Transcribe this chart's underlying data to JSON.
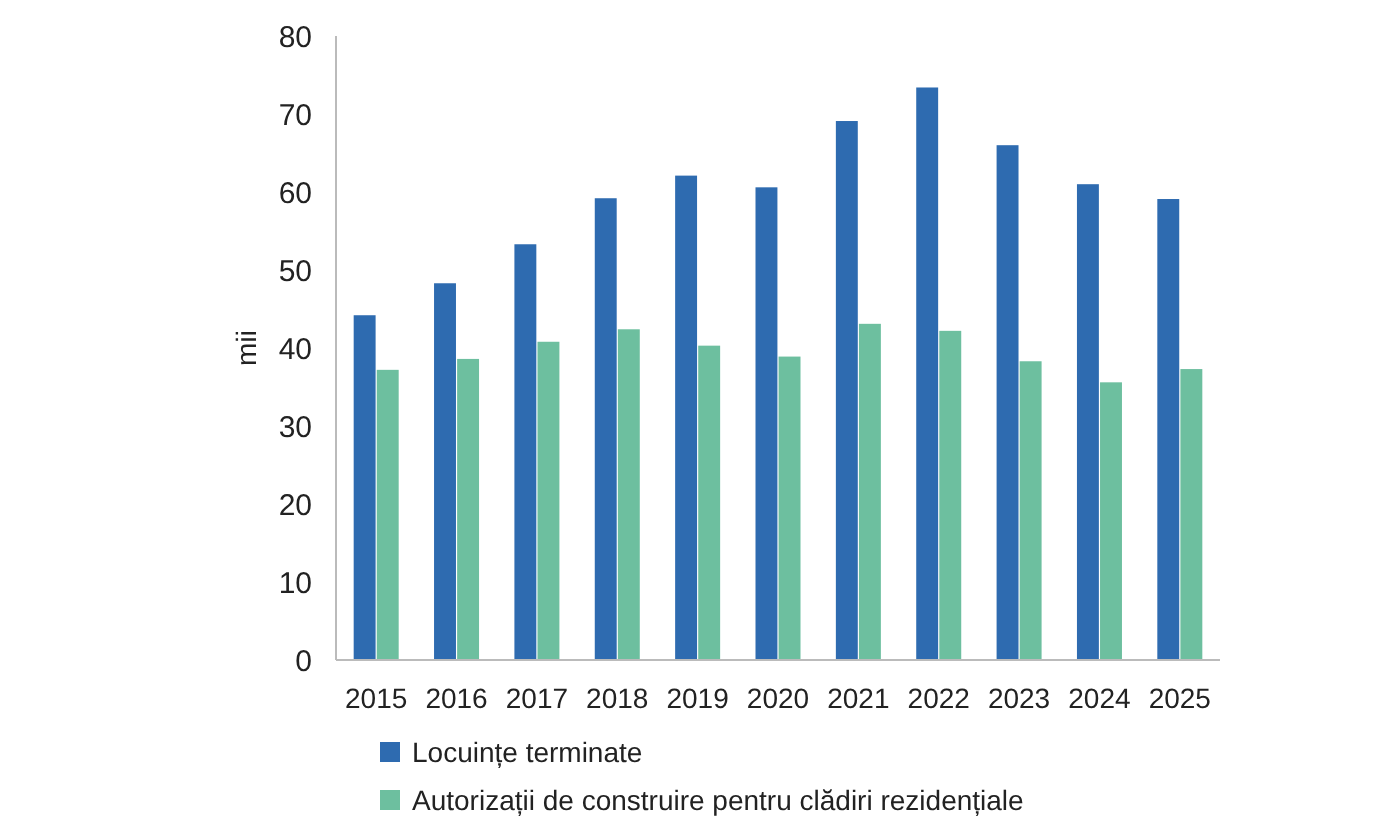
{
  "chart_data": {
    "type": "bar",
    "ylabel": "mii",
    "categories": [
      "2015",
      "2016",
      "2017",
      "2018",
      "2019",
      "2020",
      "2021",
      "2022",
      "2023",
      "2024",
      "2025"
    ],
    "series": [
      {
        "name": "Locuințe terminate",
        "color": "#2e6bb0",
        "values": [
          44.2,
          48.3,
          53.3,
          59.2,
          62.1,
          60.6,
          69.1,
          73.4,
          66.0,
          61.0,
          59.1
        ]
      },
      {
        "name": "Autorizații de construire pentru clădiri rezidențiale",
        "color": "#6dbf9f",
        "values": [
          37.2,
          38.6,
          40.8,
          42.4,
          40.3,
          38.9,
          43.1,
          42.2,
          38.3,
          35.6,
          37.3
        ]
      }
    ],
    "ylim": [
      0,
      80
    ],
    "yticks": [
      0,
      10,
      20,
      30,
      40,
      50,
      60,
      70,
      80
    ],
    "grid": false,
    "legend": "bottom"
  }
}
